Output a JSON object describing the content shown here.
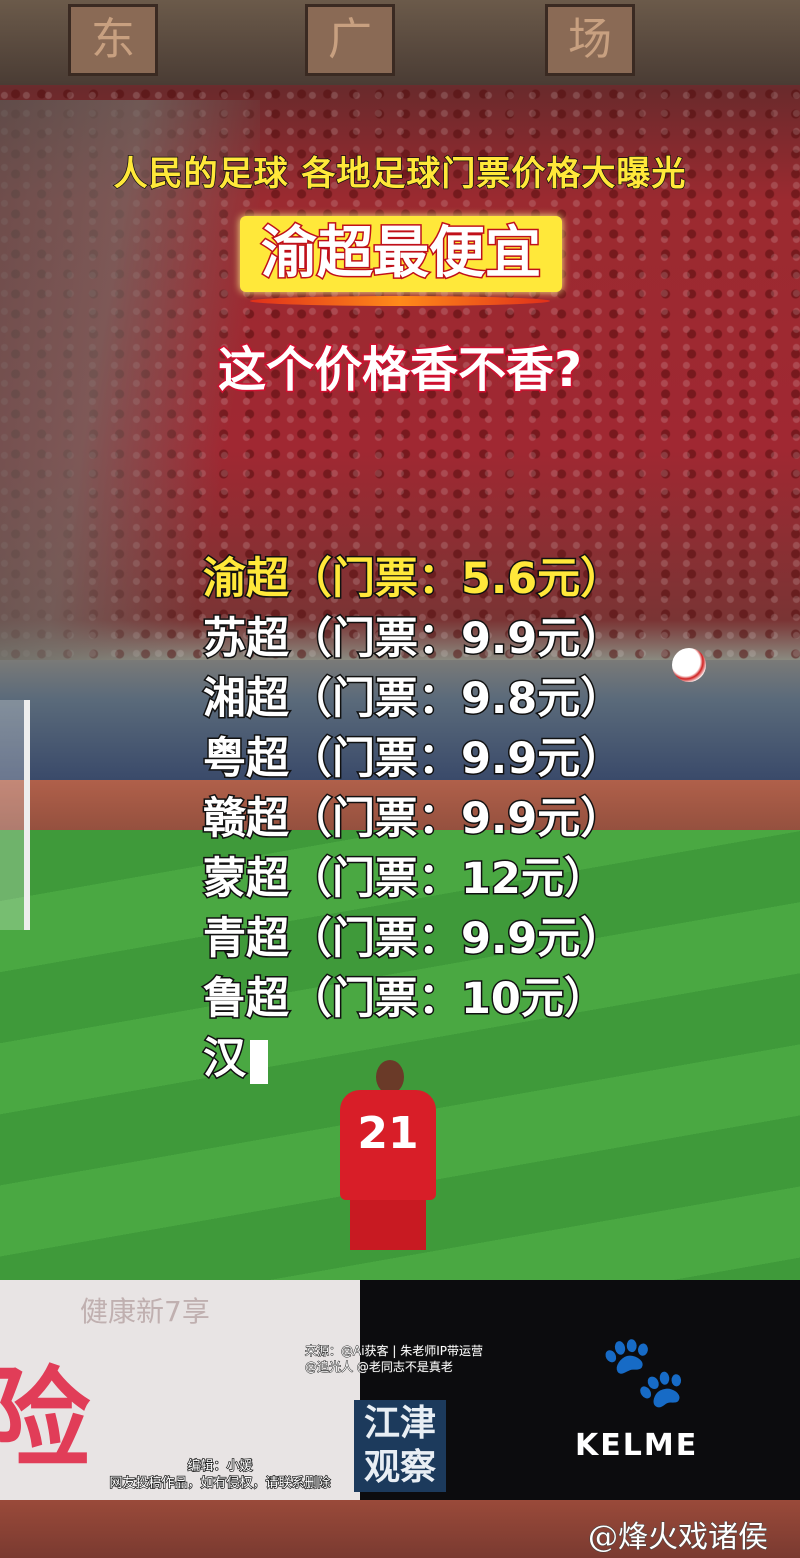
{
  "background": {
    "building_plaques": [
      "东",
      "广",
      "场"
    ],
    "player_number": "21",
    "ad_board_large_text": "险",
    "ad_board_small_text": "健康新7享",
    "sponsor_brand": "KELME"
  },
  "overlay": {
    "headline": "人民的足球 各地足球门票价格大曝光",
    "banner": "渝超最便宜",
    "question": "这个价格香不香?",
    "price_list": [
      "渝超（门票：5.6元）",
      "苏超（门票：9.9元）",
      "湘超（门票：9.8元）",
      "粤超（门票：9.9元）",
      "赣超（门票：9.9元）",
      "蒙超（门票：12元）",
      "青超（门票：9.9元）",
      "鲁超（门票：10元）",
      "汉"
    ],
    "highlight_color": "#ffe83a"
  },
  "credits": {
    "source_line1": "来源：@Ai获客 | 朱老师IP带运营",
    "source_line2": "@追光人 @老同志不是真老",
    "editor": "编辑：小媛",
    "disclaimer": "网友投稿作品，如有侵权，请联系删除"
  },
  "channel_logo": {
    "line1": "江津",
    "line2": "观察"
  },
  "watermark": "@烽火戏诸侯"
}
